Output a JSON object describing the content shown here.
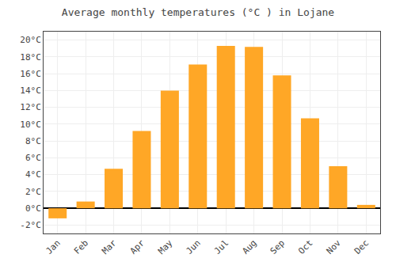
{
  "chart_data": {
    "type": "bar",
    "title": "Average monthly temperatures (°C ) in Lojane",
    "categories": [
      "Jan",
      "Feb",
      "Mar",
      "Apr",
      "May",
      "Jun",
      "Jul",
      "Aug",
      "Sep",
      "Oct",
      "Nov",
      "Dec"
    ],
    "values": [
      -1.2,
      0.8,
      4.7,
      9.2,
      14.0,
      17.1,
      19.3,
      19.2,
      15.8,
      10.7,
      5.0,
      0.4
    ],
    "color": "#FFA726",
    "ylim": [
      -3,
      21
    ],
    "yticks": [
      {
        "value": -2,
        "label": "-2°C"
      },
      {
        "value": 0,
        "label": "0°C"
      },
      {
        "value": 2,
        "label": "2°C"
      },
      {
        "value": 4,
        "label": "4°C"
      },
      {
        "value": 6,
        "label": "6°C"
      },
      {
        "value": 8,
        "label": "8°C"
      },
      {
        "value": 10,
        "label": "10°C"
      },
      {
        "value": 12,
        "label": "12°C"
      },
      {
        "value": 14,
        "label": "14°C"
      },
      {
        "value": 16,
        "label": "16°C"
      },
      {
        "value": 18,
        "label": "18°C"
      },
      {
        "value": 20,
        "label": "20°C"
      }
    ],
    "grid": true
  }
}
